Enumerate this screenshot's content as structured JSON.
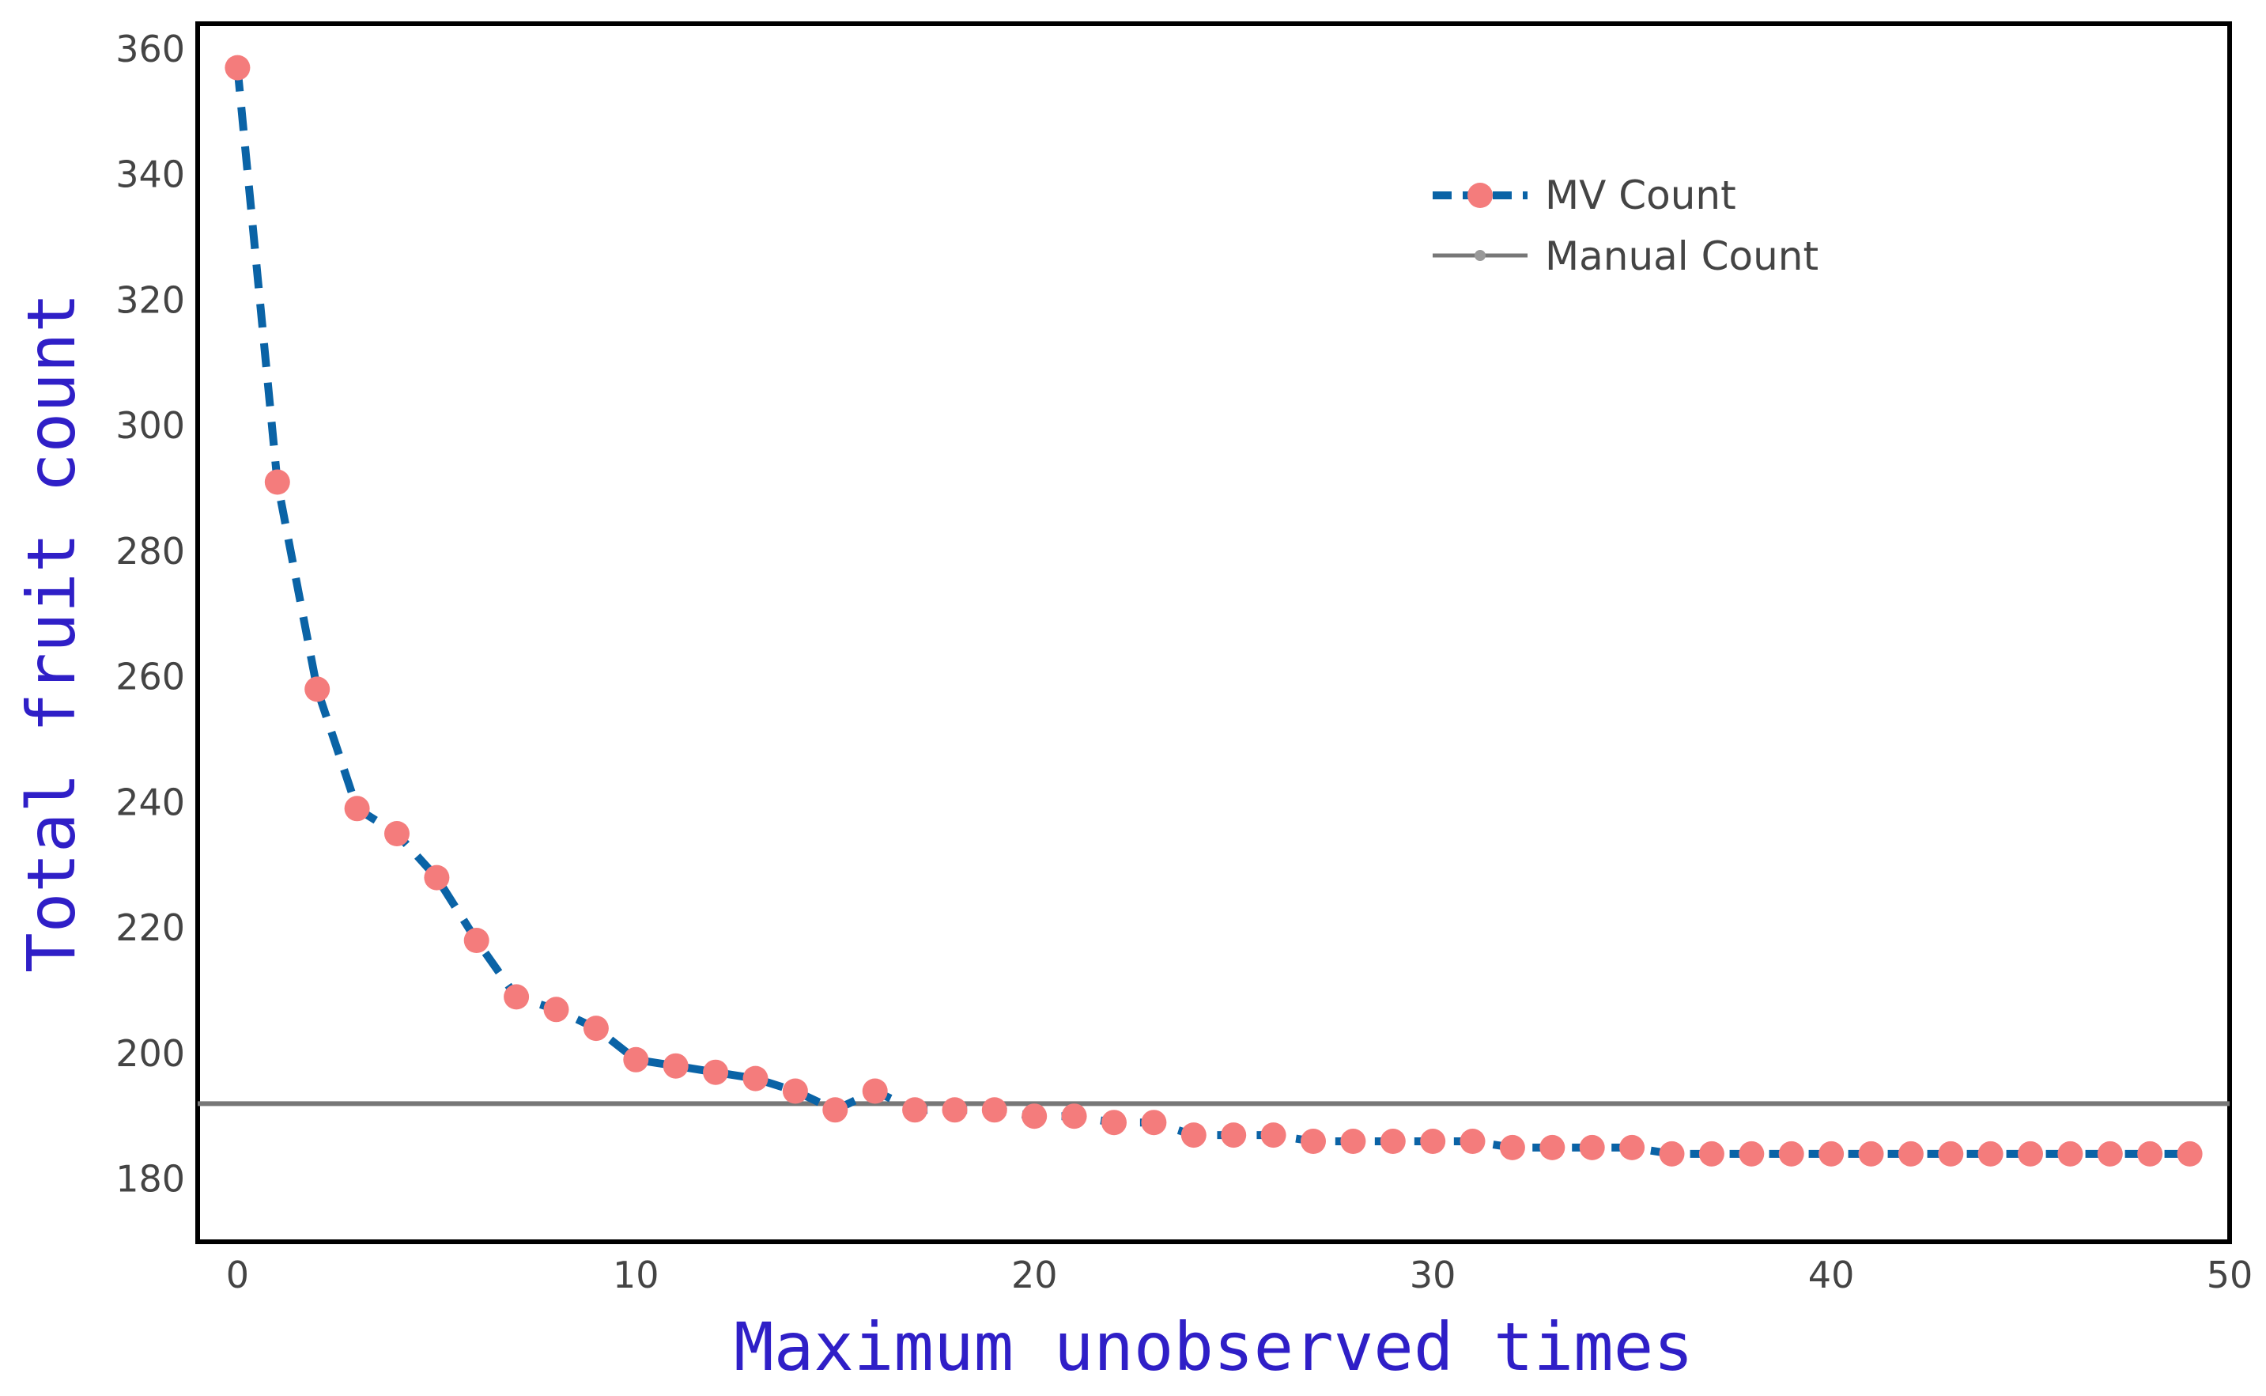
{
  "chart_data": {
    "type": "line",
    "xlabel": "Maximum unobserved times",
    "ylabel": "Total fruit count",
    "xlim": [
      -1,
      50
    ],
    "ylim": [
      170,
      364
    ],
    "x_ticks": [
      0,
      10,
      20,
      30,
      40,
      50
    ],
    "y_ticks": [
      180,
      200,
      220,
      240,
      260,
      280,
      300,
      320,
      340,
      360
    ],
    "grid": false,
    "legend_position": "top-right",
    "colors": {
      "mv_line": "#0a63a6",
      "mv_marker": "#f47c7c",
      "manual_line": "#777777",
      "axis_title": "#2f1fc7",
      "frame": "#000000"
    },
    "series": [
      {
        "name": "MV Count",
        "style": "dashed-line-with-markers",
        "x": [
          0,
          1,
          2,
          3,
          4,
          5,
          6,
          7,
          8,
          9,
          10,
          11,
          12,
          13,
          14,
          15,
          16,
          17,
          18,
          19,
          20,
          21,
          22,
          23,
          24,
          25,
          26,
          27,
          28,
          29,
          30,
          31,
          32,
          33,
          34,
          35,
          36,
          37,
          38,
          39,
          40,
          41,
          42,
          43,
          44,
          45,
          46,
          47,
          48,
          49
        ],
        "values": [
          357,
          291,
          258,
          239,
          235,
          228,
          218,
          209,
          207,
          204,
          199,
          198,
          197,
          196,
          194,
          191,
          194,
          191,
          191,
          191,
          190,
          190,
          189,
          189,
          187,
          187,
          187,
          186,
          186,
          186,
          186,
          186,
          185,
          185,
          185,
          185,
          184,
          184,
          184,
          184,
          184,
          184,
          184,
          184,
          184,
          184,
          184,
          184,
          184,
          184
        ]
      },
      {
        "name": "Manual Count",
        "style": "solid-line",
        "value": 192
      }
    ]
  }
}
